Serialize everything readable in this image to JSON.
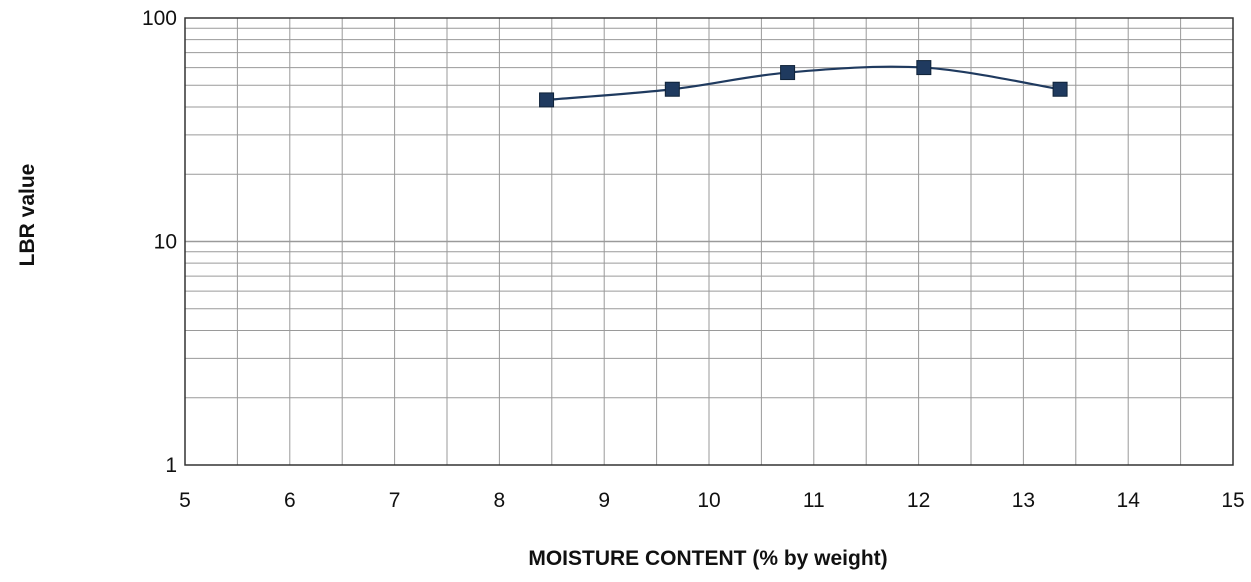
{
  "chart_data": {
    "type": "line",
    "title": "",
    "xlabel": "MOISTURE CONTENT (% by weight)",
    "ylabel": "LBR value",
    "x_scale": "linear",
    "y_scale": "log",
    "xlim": [
      5,
      15
    ],
    "ylim": [
      1,
      100
    ],
    "x_ticks": [
      "5",
      "6",
      "7",
      "8",
      "9",
      "10",
      "11",
      "12",
      "13",
      "14",
      "15"
    ],
    "y_ticks": [
      "1",
      "10",
      "100"
    ],
    "grid": true,
    "legend": "none",
    "line_style": "smoothed",
    "marker": "square",
    "series": [
      {
        "x": [
          8.45,
          9.65,
          10.75,
          12.05,
          13.35
        ],
        "y": [
          43,
          48,
          57,
          60,
          48
        ]
      }
    ],
    "colors": {
      "series": "#1f3a5f",
      "marker": "#1f3a5f",
      "grid": "#9a9a9a",
      "axis": "#333333"
    }
  }
}
